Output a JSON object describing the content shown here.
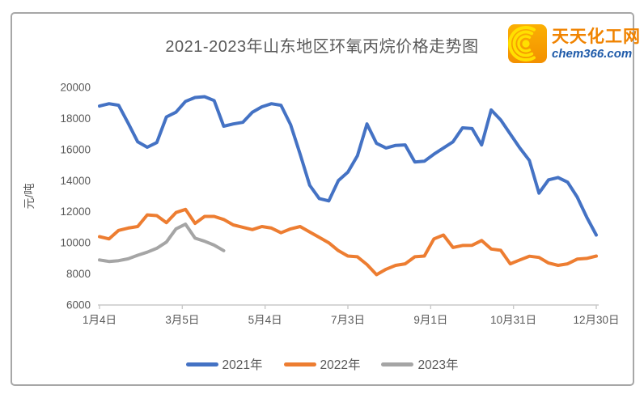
{
  "window": {
    "background": "#ffffff",
    "border_color": "#a7a7a7"
  },
  "logo": {
    "name": "天天化工网",
    "domain": "chem366.com",
    "icon": "swirl-icon",
    "box_color": "#f9a200",
    "arc_color": "#ffdf00",
    "name_color": "#f08300",
    "domain_color": "#1e5aa9"
  },
  "chart_data": {
    "type": "line",
    "title": "2021-2023年山东地区环氧丙烷价格走势图",
    "ylabel": "元/吨",
    "ylim": [
      6000,
      20000
    ],
    "ytick_interval": 2000,
    "yticks": [
      6000,
      8000,
      10000,
      12000,
      14000,
      16000,
      18000,
      20000
    ],
    "xticklabels": [
      "1月4日",
      "3月5日",
      "5月4日",
      "7月3日",
      "9月1日",
      "10月31日",
      "12月30日"
    ],
    "grid": false,
    "legend_position": "bottom",
    "axis_color": "#c9c9c9",
    "label_color": "#595959",
    "series": [
      {
        "name": "2021年",
        "color": "#4472c4",
        "values": [
          18800,
          18950,
          18850,
          17700,
          16500,
          16150,
          16450,
          18100,
          18400,
          19100,
          19350,
          19400,
          19150,
          17500,
          17650,
          17750,
          18400,
          18750,
          18950,
          18850,
          17600,
          15700,
          13700,
          12850,
          12700,
          14000,
          14550,
          15600,
          17650,
          16400,
          16100,
          16270,
          16300,
          15200,
          15250,
          15700,
          16100,
          16500,
          17400,
          17350,
          16300,
          18550,
          17900,
          17000,
          16100,
          15300,
          13200,
          14050,
          14200,
          13900,
          12950,
          11650,
          10500
        ]
      },
      {
        "name": "2022年",
        "color": "#ed7d31",
        "values": [
          10400,
          10250,
          10800,
          10950,
          11050,
          11800,
          11750,
          11300,
          11950,
          12150,
          11250,
          11700,
          11700,
          11500,
          11150,
          11000,
          10850,
          11050,
          10950,
          10650,
          10900,
          11050,
          10700,
          10350,
          10000,
          9500,
          9150,
          9100,
          8600,
          7950,
          8300,
          8550,
          8650,
          9100,
          9150,
          10250,
          10500,
          9700,
          9830,
          9840,
          10150,
          9600,
          9520,
          8650,
          8900,
          9140,
          9060,
          8700,
          8550,
          8650,
          8950,
          9000,
          9150
        ]
      },
      {
        "name": "2023年",
        "color": "#a5a5a5",
        "values": [
          8900,
          8800,
          8850,
          8970,
          9200,
          9400,
          9650,
          10050,
          10900,
          11200,
          10300,
          10100,
          9850,
          9500
        ]
      }
    ]
  }
}
